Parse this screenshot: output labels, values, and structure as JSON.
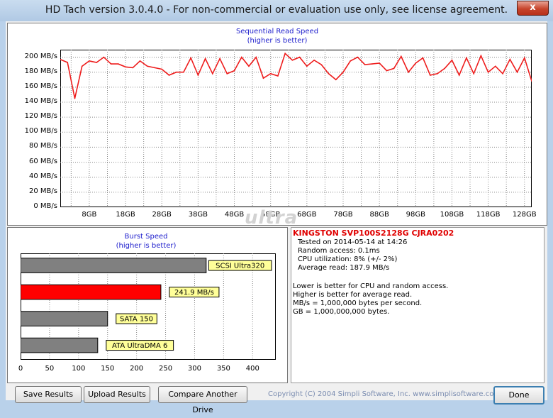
{
  "window": {
    "title": "HD Tach version 3.0.4.0  - For non-commercial or evaluation use only, see license agreement.",
    "close_glyph": "x"
  },
  "watermark": "ultra",
  "sequential_chart": {
    "title_line1": "Sequential Read Speed",
    "title_line2": "(higher is better)",
    "y_ticks": [
      "0 MB/s",
      "20 MB/s",
      "40 MB/s",
      "60 MB/s",
      "80 MB/s",
      "100 MB/s",
      "120 MB/s",
      "140 MB/s",
      "160 MB/s",
      "180 MB/s",
      "200 MB/s"
    ],
    "x_ticks": [
      "8GB",
      "18GB",
      "28GB",
      "38GB",
      "48GB",
      "58GB",
      "68GB",
      "78GB",
      "88GB",
      "98GB",
      "108GB",
      "118GB",
      "128GB"
    ],
    "line_color": "#ee1c1c"
  },
  "burst_chart": {
    "title_line1": "Burst Speed",
    "title_line2": "(higher is better)",
    "x_ticks": [
      "0",
      "50",
      "100",
      "150",
      "200",
      "250",
      "300",
      "350",
      "400"
    ]
  },
  "chart_data": [
    {
      "type": "line",
      "title": "Sequential Read Speed",
      "subtitle": "(higher is better)",
      "xlabel": "",
      "ylabel": "",
      "x_unit": "GB",
      "ylim": [
        0,
        210
      ],
      "xlim": [
        0,
        130
      ],
      "grid": true,
      "series": [
        {
          "color": "#ee1c1c",
          "x": [
            0,
            2,
            4,
            6,
            8,
            10,
            12,
            14,
            16,
            18,
            20,
            22,
            24,
            26,
            28,
            30,
            32,
            34,
            36,
            38,
            40,
            42,
            44,
            46,
            48,
            50,
            52,
            54,
            56,
            58,
            60,
            62,
            64,
            66,
            68,
            70,
            72,
            74,
            76,
            78,
            80,
            82,
            84,
            86,
            88,
            90,
            92,
            94,
            96,
            98,
            100,
            102,
            104,
            106,
            108,
            110,
            112,
            114,
            116,
            118,
            120,
            122,
            124,
            126,
            128,
            130
          ],
          "y": [
            197,
            193,
            145,
            188,
            195,
            193,
            200,
            191,
            191,
            187,
            186,
            195,
            188,
            186,
            184,
            176,
            180,
            180,
            199,
            176,
            198,
            178,
            198,
            178,
            182,
            200,
            188,
            200,
            172,
            178,
            175,
            205,
            196,
            200,
            188,
            196,
            190,
            178,
            170,
            180,
            195,
            200,
            190,
            191,
            192,
            182,
            185,
            201,
            180,
            192,
            199,
            176,
            178,
            185,
            196,
            176,
            199,
            178,
            202,
            180,
            188,
            178,
            197,
            180,
            199,
            168
          ]
        }
      ]
    },
    {
      "type": "bar",
      "title": "Burst Speed",
      "subtitle": "(higher is better)",
      "xlabel": "",
      "ylabel": "",
      "xlim": [
        0,
        440
      ],
      "categories": [
        "SCSI Ultra320",
        "241.9 MB/s",
        "SATA 150",
        "ATA UltraDMA 6"
      ],
      "values": [
        320,
        241.9,
        150,
        133
      ],
      "colors": [
        "#808080",
        "#ff0000",
        "#808080",
        "#808080"
      ]
    }
  ],
  "info": {
    "drive": "KINGSTON SVP100S2128G CJRA0202",
    "tested_on": "Tested on 2014-05-14 at 14:26",
    "random_access": "Random access: 0.1ms",
    "cpu": "CPU utilization: 8% (+/- 2%)",
    "avg_read": "Average read: 187.9 MB/s",
    "note1": "Lower is better for CPU and random access.",
    "note2": "Higher is better for average read.",
    "note3": "MB/s = 1,000,000 bytes per second.",
    "note4": "GB = 1,000,000,000 bytes."
  },
  "buttons": {
    "save": "Save Results",
    "upload": "Upload Results",
    "compare": "Compare Another Drive",
    "done": "Done"
  },
  "copyright": "Copyright (C) 2004 Simpli Software, Inc. www.simplisoftware.com"
}
